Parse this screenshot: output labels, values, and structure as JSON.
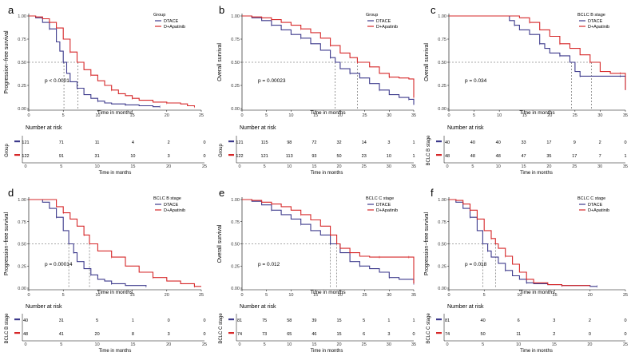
{
  "colors": {
    "dtace": "#3d3a8c",
    "apatinib": "#d62728",
    "ref": "#555555",
    "axis": "#000000",
    "tick": "#333333"
  },
  "chart_data": [
    {
      "letter": "a",
      "type": "line",
      "ylabel": "Progression−free survival",
      "xlabel": "Time in months",
      "xlim": [
        0,
        25
      ],
      "xticks": [
        0,
        5,
        10,
        15,
        20,
        25
      ],
      "ylim": [
        0,
        1
      ],
      "yticks": [
        "0.00",
        "0.25",
        "0.50",
        "0.75",
        "1.00"
      ],
      "legend_title": "Group",
      "legend_position": "right",
      "pvalue": "p < 0.0001",
      "medians": [
        5.1,
        7.1
      ],
      "series": [
        {
          "name": "DTACE",
          "color": "#3d3a8c",
          "x": [
            0,
            1,
            2,
            3,
            4,
            4.5,
            5,
            5.5,
            6,
            7,
            8,
            9,
            10,
            11,
            12,
            14,
            16,
            18,
            19
          ],
          "y": [
            1,
            0.98,
            0.93,
            0.86,
            0.72,
            0.62,
            0.5,
            0.38,
            0.29,
            0.22,
            0.15,
            0.11,
            0.08,
            0.06,
            0.05,
            0.04,
            0.03,
            0.02,
            0.02
          ]
        },
        {
          "name": "D+Apatinib",
          "color": "#d62728",
          "x": [
            0,
            1,
            2,
            3,
            4,
            5,
            6,
            7,
            8,
            9,
            10,
            11,
            12,
            13,
            14,
            15,
            16,
            18,
            20,
            22,
            23,
            24
          ],
          "y": [
            1,
            0.99,
            0.97,
            0.93,
            0.87,
            0.75,
            0.61,
            0.5,
            0.42,
            0.36,
            0.3,
            0.25,
            0.2,
            0.16,
            0.14,
            0.11,
            0.09,
            0.07,
            0.06,
            0.05,
            0.03,
            0.02
          ]
        }
      ],
      "risk_table": {
        "title": "Number at risk",
        "ylabel": "Group",
        "xlabel": "Time in months",
        "rows": [
          {
            "color": "#3d3a8c",
            "values": [
              "121",
              "71",
              "11",
              "4",
              "2",
              "0"
            ]
          },
          {
            "color": "#d62728",
            "values": [
              "122",
              "91",
              "31",
              "10",
              "3",
              "0"
            ]
          }
        ]
      }
    },
    {
      "letter": "b",
      "type": "line",
      "ylabel": "Overall survival",
      "xlabel": "Time in months",
      "xlim": [
        0,
        35
      ],
      "xticks": [
        0,
        5,
        10,
        15,
        20,
        25,
        30,
        35
      ],
      "ylim": [
        0,
        1
      ],
      "yticks": [
        "0.00",
        "0.25",
        "0.50",
        "0.75",
        "1.00"
      ],
      "legend_title": "Group",
      "legend_position": "right",
      "pvalue": "p = 0.00023",
      "medians": [
        19,
        23.5
      ],
      "series": [
        {
          "name": "DTACE",
          "color": "#3d3a8c",
          "x": [
            0,
            2,
            4,
            6,
            8,
            10,
            12,
            14,
            16,
            18,
            19,
            20,
            22,
            24,
            26,
            28,
            30,
            32,
            34,
            35
          ],
          "y": [
            1,
            0.98,
            0.95,
            0.9,
            0.85,
            0.8,
            0.76,
            0.7,
            0.63,
            0.55,
            0.5,
            0.43,
            0.38,
            0.33,
            0.27,
            0.2,
            0.15,
            0.12,
            0.1,
            0.04
          ]
        },
        {
          "name": "D+Apatinib",
          "color": "#d62728",
          "x": [
            0,
            2,
            4,
            6,
            8,
            10,
            12,
            14,
            16,
            18,
            20,
            22,
            23.5,
            26,
            28,
            30,
            32,
            34,
            35
          ],
          "y": [
            1,
            0.99,
            0.98,
            0.96,
            0.93,
            0.9,
            0.86,
            0.82,
            0.76,
            0.68,
            0.6,
            0.55,
            0.5,
            0.45,
            0.38,
            0.34,
            0.33,
            0.32,
            0.12
          ]
        }
      ],
      "risk_table": {
        "title": "Number at risk",
        "ylabel": "Group",
        "xlabel": "Time in months",
        "rows": [
          {
            "color": "#3d3a8c",
            "values": [
              "121",
              "115",
              "98",
              "72",
              "32",
              "14",
              "3",
              "1"
            ]
          },
          {
            "color": "#d62728",
            "values": [
              "122",
              "121",
              "113",
              "93",
              "50",
              "23",
              "10",
              "1"
            ]
          }
        ]
      }
    },
    {
      "letter": "c",
      "type": "line",
      "ylabel": "Overall survival",
      "xlabel": "Time in months",
      "xlim": [
        0,
        35
      ],
      "xticks": [
        0,
        5,
        10,
        15,
        20,
        25,
        30,
        35
      ],
      "ylim": [
        0,
        1
      ],
      "yticks": [
        "0.00",
        "0.25",
        "0.50",
        "0.75",
        "1.00"
      ],
      "legend_title": "BCLC B stage",
      "legend_position": "right",
      "pvalue": "p = 0.034",
      "medians": [
        24.3,
        28.3
      ],
      "series": [
        {
          "name": "DTACE",
          "color": "#3d3a8c",
          "x": [
            0,
            10,
            12,
            13,
            14,
            16,
            18,
            19,
            20,
            22,
            24,
            25,
            26,
            30,
            32,
            34,
            35
          ],
          "y": [
            1,
            1,
            0.95,
            0.9,
            0.85,
            0.8,
            0.7,
            0.65,
            0.6,
            0.57,
            0.5,
            0.4,
            0.35,
            0.35,
            0.35,
            0.35,
            0.2
          ]
        },
        {
          "name": "D+Apatinib",
          "color": "#d62728",
          "x": [
            0,
            12,
            14,
            16,
            18,
            20,
            22,
            24,
            26,
            28,
            30,
            32,
            34,
            35
          ],
          "y": [
            1,
            1,
            0.98,
            0.93,
            0.85,
            0.78,
            0.7,
            0.65,
            0.58,
            0.5,
            0.4,
            0.38,
            0.38,
            0.2
          ]
        }
      ],
      "risk_table": {
        "title": "Number at risk",
        "ylabel": "BCLC B stage",
        "xlabel": "Time in months",
        "rows": [
          {
            "color": "#3d3a8c",
            "values": [
              "40",
              "40",
              "40",
              "33",
              "17",
              "9",
              "2",
              "0"
            ]
          },
          {
            "color": "#d62728",
            "values": [
              "48",
              "48",
              "48",
              "47",
              "35",
              "17",
              "7",
              "1"
            ]
          }
        ]
      }
    },
    {
      "letter": "d",
      "type": "line",
      "ylabel": "Progression−free survival",
      "xlabel": "Time in months",
      "xlim": [
        0,
        25
      ],
      "xticks": [
        0,
        5,
        10,
        15,
        20,
        25
      ],
      "ylim": [
        0,
        1
      ],
      "yticks": [
        "0.00",
        "0.25",
        "0.50",
        "0.75",
        "1.00"
      ],
      "legend_title": "BCLC B stage",
      "legend_position": "right",
      "pvalue": "p = 0.00014",
      "medians": [
        5.8,
        8.8
      ],
      "series": [
        {
          "name": "DTACE",
          "color": "#3d3a8c",
          "x": [
            0,
            2,
            3,
            4,
            5,
            5.8,
            6.5,
            7,
            8,
            9,
            10,
            11,
            12,
            14,
            16,
            17
          ],
          "y": [
            1,
            0.97,
            0.9,
            0.8,
            0.65,
            0.5,
            0.4,
            0.3,
            0.22,
            0.15,
            0.1,
            0.08,
            0.05,
            0.03,
            0.03,
            0.02
          ]
        },
        {
          "name": "D+Apatinib",
          "color": "#d62728",
          "x": [
            0,
            2,
            4,
            5,
            6,
            7,
            8,
            8.8,
            10,
            12,
            14,
            16,
            18,
            20,
            22,
            24,
            25
          ],
          "y": [
            1,
            1,
            0.92,
            0.85,
            0.78,
            0.7,
            0.6,
            0.5,
            0.42,
            0.35,
            0.25,
            0.18,
            0.12,
            0.08,
            0.05,
            0.02,
            0.02
          ]
        }
      ],
      "risk_table": {
        "title": "Number at risk",
        "ylabel": "BCLC B stage",
        "xlabel": "Time in months",
        "rows": [
          {
            "color": "#3d3a8c",
            "values": [
              "40",
              "31",
              "5",
              "1",
              "0",
              "0"
            ]
          },
          {
            "color": "#d62728",
            "values": [
              "48",
              "41",
              "20",
              "8",
              "3",
              "0"
            ]
          }
        ]
      }
    },
    {
      "letter": "e",
      "type": "line",
      "ylabel": "Overall survival",
      "xlabel": "Time in months",
      "xlim": [
        0,
        35
      ],
      "xticks": [
        0,
        5,
        10,
        15,
        20,
        25,
        30,
        35
      ],
      "ylim": [
        0,
        1
      ],
      "yticks": [
        "0.00",
        "0.25",
        "0.50",
        "0.75",
        "1.00"
      ],
      "legend_title": "BCLC C stage",
      "legend_position": "right",
      "pvalue": "p = 0.012",
      "medians": [
        18,
        19.3
      ],
      "series": [
        {
          "name": "DTACE",
          "color": "#3d3a8c",
          "x": [
            0,
            2,
            4,
            6,
            8,
            10,
            12,
            14,
            16,
            18,
            20,
            22,
            24,
            26,
            28,
            30,
            32,
            34,
            35
          ],
          "y": [
            1,
            0.98,
            0.94,
            0.88,
            0.83,
            0.78,
            0.72,
            0.65,
            0.6,
            0.5,
            0.4,
            0.3,
            0.25,
            0.22,
            0.18,
            0.12,
            0.1,
            0.1,
            0.05
          ]
        },
        {
          "name": "D+Apatinib",
          "color": "#d62728",
          "x": [
            0,
            2,
            4,
            6,
            8,
            10,
            12,
            14,
            16,
            18,
            19.3,
            20,
            22,
            24,
            26,
            28,
            30,
            32,
            34,
            35
          ],
          "y": [
            1,
            0.99,
            0.97,
            0.95,
            0.92,
            0.88,
            0.83,
            0.77,
            0.7,
            0.6,
            0.5,
            0.45,
            0.4,
            0.36,
            0.35,
            0.35,
            0.35,
            0.35,
            0.35,
            0.05
          ]
        }
      ],
      "risk_table": {
        "title": "Number at risk",
        "ylabel": "BCLC C stage",
        "xlabel": "Time in months",
        "rows": [
          {
            "color": "#3d3a8c",
            "values": [
              "81",
              "75",
              "58",
              "39",
              "15",
              "5",
              "1",
              "1"
            ]
          },
          {
            "color": "#d62728",
            "values": [
              "74",
              "73",
              "65",
              "46",
              "15",
              "6",
              "3",
              "0"
            ]
          }
        ]
      }
    },
    {
      "letter": "f",
      "type": "line",
      "ylabel": "Progression−free survival",
      "xlabel": "Time in months",
      "xlim": [
        0,
        25
      ],
      "xticks": [
        0,
        5,
        10,
        15,
        20,
        25
      ],
      "ylim": [
        0,
        1
      ],
      "yticks": [
        "0.00",
        "0.25",
        "0.50",
        "0.75",
        "1.00"
      ],
      "legend_title": "BCLC C stage",
      "legend_position": "right",
      "pvalue": "p = 0.018",
      "medians": [
        4.8,
        6.6
      ],
      "series": [
        {
          "name": "DTACE",
          "color": "#3d3a8c",
          "x": [
            0,
            1,
            2,
            3,
            4,
            4.8,
            5.5,
            6,
            7,
            8,
            9,
            10,
            11,
            12,
            14,
            16,
            18,
            20,
            21
          ],
          "y": [
            1,
            0.97,
            0.9,
            0.8,
            0.65,
            0.5,
            0.42,
            0.35,
            0.28,
            0.2,
            0.14,
            0.1,
            0.06,
            0.05,
            0.04,
            0.03,
            0.03,
            0.02,
            0.02
          ]
        },
        {
          "name": "D+Apatinib",
          "color": "#d62728",
          "x": [
            0,
            1,
            2,
            3,
            4,
            5,
            6,
            6.6,
            7,
            8,
            9,
            10,
            11,
            12,
            14,
            16,
            18,
            20
          ],
          "y": [
            1,
            0.99,
            0.95,
            0.88,
            0.78,
            0.65,
            0.56,
            0.5,
            0.45,
            0.36,
            0.27,
            0.18,
            0.1,
            0.06,
            0.04,
            0.03,
            0.03,
            0.03
          ]
        }
      ],
      "risk_table": {
        "title": "Number at risk",
        "ylabel": "BCLC C stage",
        "xlabel": "Time in months",
        "rows": [
          {
            "color": "#3d3a8c",
            "values": [
              "81",
              "40",
              "6",
              "3",
              "2",
              "0"
            ]
          },
          {
            "color": "#d62728",
            "values": [
              "74",
              "50",
              "11",
              "2",
              "0",
              "0"
            ]
          }
        ]
      }
    }
  ]
}
